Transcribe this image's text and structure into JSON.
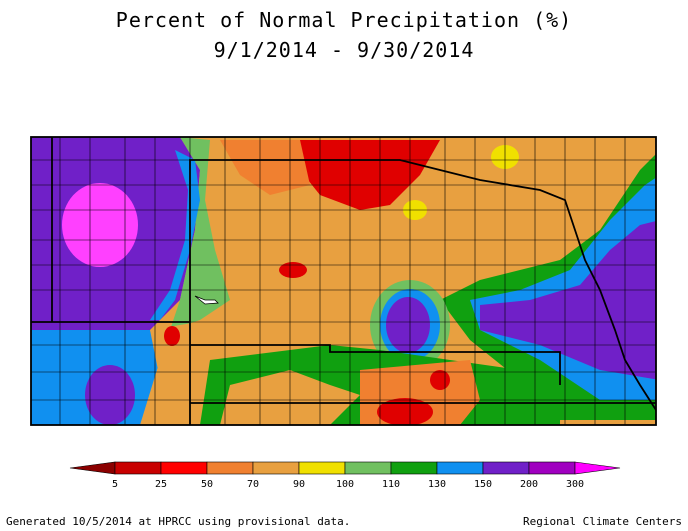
{
  "title": "Percent of Normal Precipitation (%)",
  "period": "9/1/2014 - 9/30/2014",
  "legend": {
    "ticks": [
      "5",
      "25",
      "50",
      "70",
      "90",
      "100",
      "110",
      "130",
      "150",
      "200",
      "300"
    ],
    "colors": [
      "#8b0000",
      "#c80000",
      "#ff0000",
      "#f08030",
      "#e8a040",
      "#f0e000",
      "#70c060",
      "#10a010",
      "#1090f0",
      "#7020c8",
      "#a000c0",
      "#ff00ff"
    ]
  },
  "palette": {
    "deep_red": "#e00000",
    "orange": "#f08030",
    "tan": "#e8a040",
    "yellow": "#f0e000",
    "light_green": "#70c060",
    "green": "#10a010",
    "blue": "#1090f0",
    "purple": "#7020c8",
    "violet": "#a000c0",
    "magenta": "#ff40ff"
  },
  "footer": {
    "left": "Generated 10/5/2014 at HPRCC using provisional data.",
    "right": "Regional Climate Centers"
  }
}
